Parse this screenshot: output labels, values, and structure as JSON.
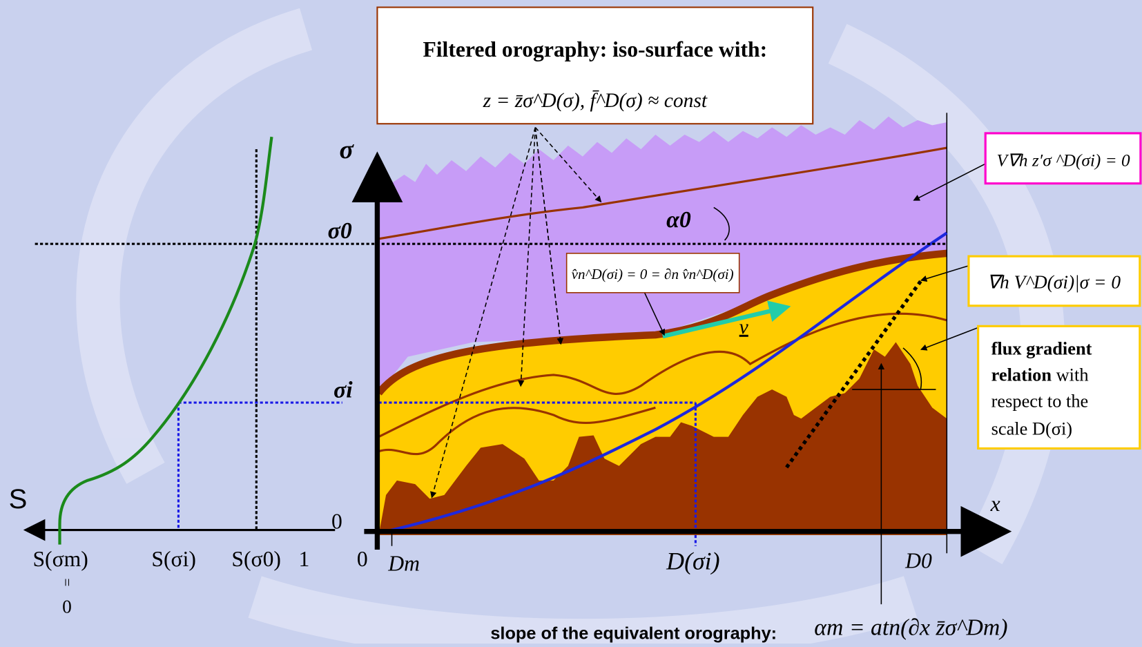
{
  "box": {
    "line1": "Filtered orography: iso-surface with:",
    "line2": "z = z̄σ^D(σ),   f̄^D(σ) ≈ const"
  },
  "left": {
    "s_label": "S",
    "zero": "0",
    "s_m": "S(σm)",
    "s_i": "S(σi)",
    "s_0": "S(σ0)",
    "one": "1",
    "equals": "=",
    "zero_below": "0"
  },
  "axes": {
    "sigma": "σ",
    "sigma_0": "σ0",
    "sigma_i": "σi",
    "x": "x",
    "origin": "0",
    "d_m": "Dm",
    "d_i": "D(σi)",
    "d_0": "D0"
  },
  "labels": {
    "alpha_0": "α0",
    "v": "v",
    "vn": "v̂n^D(σi) = 0 = ∂n v̂n^D(σi)"
  },
  "right": {
    "magenta": "V∇h z′σ ^D(σi) = 0",
    "yellow": "∇h V^D(σi)|σ = 0",
    "flux": {
      "line1": "flux gradient",
      "line2_bold": "relation",
      "line2_rest": " with",
      "line3": "respect to the",
      "line4": "scale  D(σi)"
    }
  },
  "bottom": {
    "caption": "slope of the equivalent orography:",
    "formula": "αm = atn(∂x z̄σ^Dm)"
  }
}
